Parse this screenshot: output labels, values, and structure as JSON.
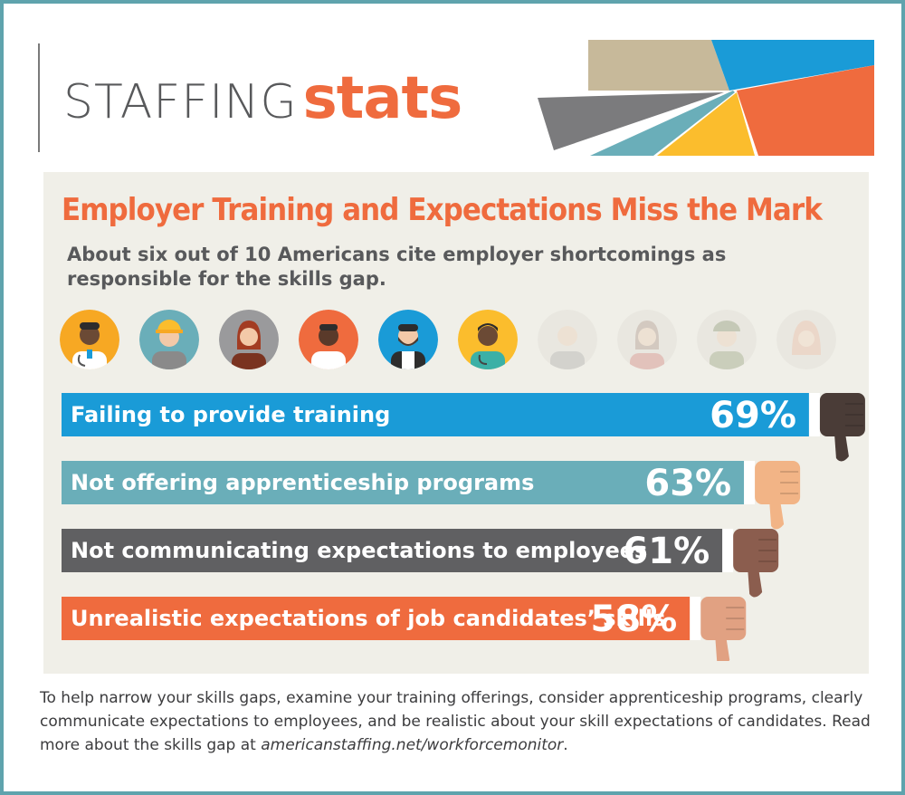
{
  "brand": {
    "word1": "STAFFING",
    "word2": "stats"
  },
  "colors": {
    "orange": "#ef6b3e",
    "blue": "#1a9bd7",
    "teal": "#6aaeb9",
    "gray": "#606062",
    "tan": "#c7b99a",
    "yellow": "#fbbd2d",
    "frame": "#5fa3ad"
  },
  "infographic": {
    "title": "Employer Training and Expectations Miss the Mark",
    "subtitle": "About six out of 10 Americans cite employer shortcomings as responsible for the skills gap."
  },
  "icons": {
    "people_highlighted": 6,
    "people_total": 10,
    "person_icons": [
      "doctor-icon",
      "construction-worker-icon",
      "woman-icon",
      "chef-icon",
      "bearded-man-icon",
      "nurse-icon",
      "waiter-icon",
      "woman-icon",
      "soldier-icon",
      "hijab-woman-icon"
    ],
    "bar_icon": "thumbs-down-icon"
  },
  "chart_data": {
    "type": "bar",
    "orientation": "horizontal",
    "categories": [
      "Failing to provide training",
      "Not offering apprenticeship programs",
      "Not communicating expectations to employees",
      "Unrealistic expectations of job candidates’ skills"
    ],
    "values": [
      69,
      63,
      61,
      58
    ],
    "value_labels": [
      "69%",
      "63%",
      "61%",
      "58%"
    ],
    "bar_colors": [
      "#1a9bd7",
      "#6aaeb9",
      "#606062",
      "#ef6b3e"
    ],
    "thumb_colors": [
      "#4a3c37",
      "#f2b486",
      "#8b5d4e",
      "#e1a182"
    ],
    "title": "Employer Training and Expectations Miss the Mark",
    "xlabel": "",
    "ylabel": "",
    "grid": false,
    "legend": "none"
  },
  "footer": {
    "text": "To help narrow your skills gaps, examine your training offerings, consider apprenticeship programs, clearly communicate expectations to employees, and be realistic about your skill expectations of candidates. Read more about the skills gap at ",
    "link_text": "americanstaffing.net/workforcemonitor",
    "end": "."
  }
}
